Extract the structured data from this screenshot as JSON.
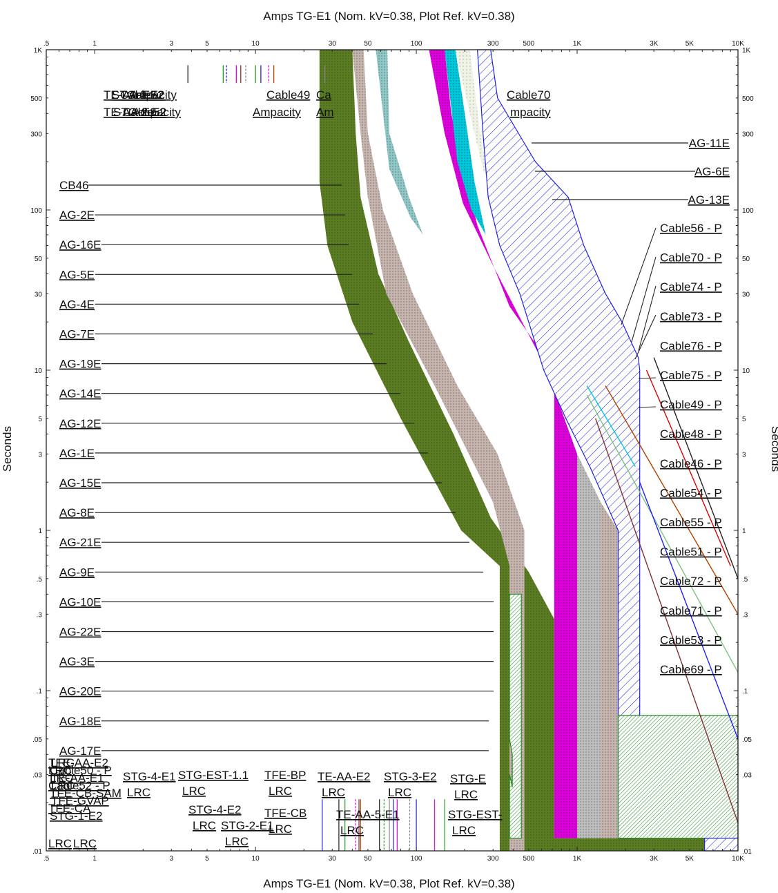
{
  "chart_data": {
    "type": "tcc",
    "title_top": "Amps   TG-E1 (Nom. kV=0.38, Plot Ref. kV=0.38)",
    "title_bottom": "Amps   TG-E1 (Nom. kV=0.38, Plot Ref. kV=0.38)",
    "ylabel": "Seconds",
    "x_scale": "log",
    "y_scale": "log",
    "xlim": [
      0.5,
      10000
    ],
    "ylim": [
      0.01,
      1000
    ],
    "x_ticks": [
      {
        "v": 0.5,
        "t": ".5"
      },
      {
        "v": 1,
        "t": "1"
      },
      {
        "v": 3,
        "t": "3"
      },
      {
        "v": 5,
        "t": "5"
      },
      {
        "v": 10,
        "t": "10"
      },
      {
        "v": 30,
        "t": "30"
      },
      {
        "v": 50,
        "t": "50"
      },
      {
        "v": 100,
        "t": "100"
      },
      {
        "v": 300,
        "t": "300"
      },
      {
        "v": 500,
        "t": "500"
      },
      {
        "v": 1000,
        "t": "1K"
      },
      {
        "v": 3000,
        "t": "3K"
      },
      {
        "v": 5000,
        "t": "5K"
      },
      {
        "v": 10000,
        "t": "10K"
      }
    ],
    "y_ticks": [
      {
        "v": 1000,
        "t": "1K"
      },
      {
        "v": 500,
        "t": "500"
      },
      {
        "v": 300,
        "t": "300"
      },
      {
        "v": 100,
        "t": "100"
      },
      {
        "v": 50,
        "t": "50"
      },
      {
        "v": 30,
        "t": "30"
      },
      {
        "v": 10,
        "t": "10"
      },
      {
        "v": 5,
        "t": "5"
      },
      {
        "v": 3,
        "t": "3"
      },
      {
        "v": 1,
        "t": "1"
      },
      {
        "v": 0.5,
        "t": ".5"
      },
      {
        "v": 0.3,
        "t": ".3"
      },
      {
        "v": 0.1,
        "t": ".1"
      },
      {
        "v": 0.05,
        "t": ".05"
      },
      {
        "v": 0.03,
        "t": ".03"
      },
      {
        "v": 0.01,
        "t": ".01"
      }
    ],
    "bands": [
      {
        "name": "CB46",
        "fill": "#5a7d21",
        "pattern": "dots",
        "pts": [
          [
            25,
            1000
          ],
          [
            40,
            1000
          ],
          [
            42,
            300
          ],
          [
            45,
            120
          ],
          [
            58,
            40
          ],
          [
            90,
            15
          ],
          [
            170,
            4
          ],
          [
            290,
            1.2
          ],
          [
            500,
            0.55
          ],
          [
            720,
            0.28
          ],
          [
            720,
            0.012
          ],
          [
            6200,
            0.012
          ],
          [
            6200,
            0.01
          ],
          [
            330,
            0.01
          ],
          [
            330,
            0.6
          ],
          [
            190,
            1
          ],
          [
            80,
            5
          ],
          [
            40,
            20
          ],
          [
            28,
            60
          ],
          [
            25,
            150
          ]
        ]
      },
      {
        "name": "band-b",
        "fill": "#c6b4ae",
        "pattern": "dots",
        "pts": [
          [
            40,
            1000
          ],
          [
            47,
            1000
          ],
          [
            50,
            300
          ],
          [
            62,
            100
          ],
          [
            95,
            30
          ],
          [
            180,
            8
          ],
          [
            320,
            3
          ],
          [
            470,
            1
          ],
          [
            470,
            0.01
          ],
          [
            380,
            0.01
          ],
          [
            380,
            0.6
          ],
          [
            300,
            1.5
          ],
          [
            130,
            8
          ],
          [
            65,
            30
          ],
          [
            50,
            120
          ],
          [
            45,
            300
          ]
        ]
      },
      {
        "name": "band-c",
        "fill": "#8fc6c6",
        "pattern": "dots",
        "pts": [
          [
            56,
            1000
          ],
          [
            66,
            1000
          ],
          [
            68,
            300
          ],
          [
            90,
            120
          ],
          [
            110,
            70
          ],
          [
            92,
            90
          ],
          [
            68,
            180
          ]
        ]
      },
      {
        "name": "band-d",
        "fill": "#dd00dd",
        "pattern": "dots",
        "pts": [
          [
            120,
            1000
          ],
          [
            150,
            1000
          ],
          [
            165,
            400
          ],
          [
            195,
            180
          ],
          [
            240,
            80
          ],
          [
            380,
            25
          ],
          [
            720,
            10
          ],
          [
            720,
            0.012
          ],
          [
            1000,
            0.012
          ],
          [
            1000,
            3
          ],
          [
            650,
            10
          ],
          [
            300,
            45
          ],
          [
            195,
            110
          ],
          [
            150,
            300
          ]
        ]
      },
      {
        "name": "band-e",
        "fill": "#00c8dc",
        "pattern": "dots",
        "pts": [
          [
            150,
            1000
          ],
          [
            175,
            1000
          ],
          [
            200,
            400
          ],
          [
            230,
            150
          ],
          [
            270,
            70
          ],
          [
            220,
            100
          ],
          [
            180,
            200
          ]
        ]
      },
      {
        "name": "band-f",
        "fill": "#eef3e6",
        "pattern": "sparse",
        "pts": [
          [
            175,
            1000
          ],
          [
            215,
            1000
          ],
          [
            250,
            300
          ],
          [
            300,
            120
          ],
          [
            260,
            180
          ],
          [
            215,
            400
          ]
        ]
      },
      {
        "name": "band-g",
        "fill": "#bdbdbd",
        "pattern": "dots",
        "pts": [
          [
            1000,
            3
          ],
          [
            1000,
            0.012
          ],
          [
            1400,
            0.012
          ],
          [
            1400,
            1.5
          ]
        ]
      },
      {
        "name": "band-h",
        "fill": "#c6b4ae",
        "pattern": "dots",
        "pts": [
          [
            1400,
            1.5
          ],
          [
            1400,
            0.012
          ],
          [
            1800,
            0.012
          ],
          [
            1800,
            1
          ]
        ]
      },
      {
        "name": "band-blue",
        "fill": "#ffffff",
        "pattern": "blue-hatch",
        "pts": [
          [
            240,
            1000
          ],
          [
            290,
            1000
          ],
          [
            320,
            500
          ],
          [
            550,
            200
          ],
          [
            880,
            120
          ],
          [
            1100,
            60
          ],
          [
            1500,
            30
          ],
          [
            1900,
            20
          ],
          [
            2400,
            12
          ],
          [
            2450,
            10
          ],
          [
            2450,
            0.012
          ],
          [
            1800,
            0.012
          ],
          [
            1800,
            1
          ],
          [
            1200,
            2.5
          ],
          [
            850,
            5
          ],
          [
            620,
            10
          ],
          [
            440,
            30
          ],
          [
            330,
            60
          ],
          [
            280,
            120
          ],
          [
            260,
            300
          ]
        ]
      },
      {
        "name": "gnd-green",
        "fill": "#ffffff",
        "pattern": "green-hatch",
        "pts": [
          [
            380,
            0.4
          ],
          [
            450,
            0.4
          ],
          [
            450,
            0.012
          ],
          [
            380,
            0.012
          ],
          [
            380,
            0.03
          ],
          [
            395,
            0.025
          ],
          [
            395,
            0.04
          ],
          [
            380,
            0.05
          ]
        ]
      },
      {
        "name": "gnd-green-r",
        "fill": "#ffffff",
        "pattern": "green-hatch",
        "pts": [
          [
            1800,
            0.07
          ],
          [
            10000,
            0.07
          ],
          [
            10000,
            0.012
          ],
          [
            1800,
            0.012
          ]
        ]
      },
      {
        "name": "blue-br",
        "fill": "#ffffff",
        "pattern": "blue-hatch",
        "pts": [
          [
            6200,
            0.012
          ],
          [
            10000,
            0.012
          ],
          [
            10000,
            0.01
          ],
          [
            6200,
            0.01
          ]
        ]
      }
    ],
    "lines": [
      {
        "name": "Cable76",
        "color": "#e00000",
        "pts": [
          [
            2700,
            10
          ],
          [
            9000,
            0.6
          ]
        ]
      },
      {
        "name": "Cable75",
        "color": "#222222",
        "pts": [
          [
            3000,
            12
          ],
          [
            10000,
            0.5
          ]
        ]
      },
      {
        "name": "Cable49",
        "color": "#b04000",
        "pts": [
          [
            1500,
            8
          ],
          [
            10000,
            0.3
          ]
        ]
      },
      {
        "name": "Cable48",
        "color": "#7f3030",
        "pts": [
          [
            1300,
            5
          ],
          [
            10000,
            0.015
          ]
        ]
      },
      {
        "name": "Cable54",
        "color": "#80c080",
        "pts": [
          [
            1150,
            7
          ],
          [
            10000,
            0.13
          ]
        ]
      },
      {
        "name": "Cable46",
        "color": "#00c8dc",
        "pts": [
          [
            1150,
            8
          ],
          [
            2300,
            2.5
          ]
        ]
      },
      {
        "name": "Cable69",
        "color": "#2020ff",
        "pts": [
          [
            2450,
            2
          ],
          [
            10000,
            0.05
          ]
        ]
      }
    ],
    "left_labels": [
      "CB46",
      "AG-2E",
      "AG-16E",
      "AG-5E",
      "AG-4E",
      "AG-7E",
      "AG-19E",
      "AG-14E",
      "AG-12E",
      "AG-1E",
      "AG-15E",
      "AG-8E",
      "AG-21E",
      "AG-9E",
      "AG-10E",
      "AG-22E",
      "AG-3E",
      "AG-20E",
      "AG-18E",
      "AG-17E"
    ],
    "right_labels_top": [
      "AG-11E",
      "AG-6E",
      "AG-13E"
    ],
    "right_labels": [
      "Cable56 - P",
      "Cable70 - P",
      "Cable74 - P",
      "Cable73 - P",
      "Cable76 - P",
      "Cable75 - P",
      "Cable49 - P",
      "Cable48 - P",
      "Cable46 - P",
      "Cable54 - P",
      "Cable55 - P",
      "Cable51 - P",
      "Cable72 - P",
      "Cable71 - P",
      "Cable53 - P",
      "Cable69 - P"
    ],
    "top_labels": [
      {
        "line1": "Cable49",
        "line2": "Ampacity"
      },
      {
        "line1": "Ca",
        "line2": "Am"
      },
      {
        "line1": "Cable70",
        "line2": "mpacity"
      }
    ],
    "bottom_lrc": [
      {
        "name": "STG-4-E1",
        "sub": "LRC"
      },
      {
        "name": "STG-EST-1.1",
        "sub": "LRC"
      },
      {
        "name": "TFE-BP",
        "sub": "LRC"
      },
      {
        "name": "TE-AA-E2",
        "sub": "LRC"
      },
      {
        "name": "STG-3-E2",
        "sub": "LRC"
      },
      {
        "name": "STG-E",
        "sub": "LRC"
      },
      {
        "name": "STG-4-E2",
        "sub": "LRC"
      },
      {
        "name": "STG-2-E1",
        "sub": "LRC"
      },
      {
        "name": "TFE-CB",
        "sub": "LRC"
      },
      {
        "name": "TE-AA-5-E1",
        "sub": "LRC"
      },
      {
        "name": "STG-EST-",
        "sub": "LRC"
      }
    ],
    "bottom_left_stack": [
      "TFE-AA-E2",
      "Cable50 - P",
      "TE-AA-E1",
      "Cable52 - P",
      "TFE-CB-SAM",
      "TFE-GVAP",
      "TFE-CA",
      "STG-1-E2",
      "LRC",
      "LRC",
      "LRC",
      "LRC"
    ],
    "top_left_stack": [
      "TE-AA-E2",
      "STG-2-E2",
      "Cable52",
      "Ampacity"
    ]
  }
}
